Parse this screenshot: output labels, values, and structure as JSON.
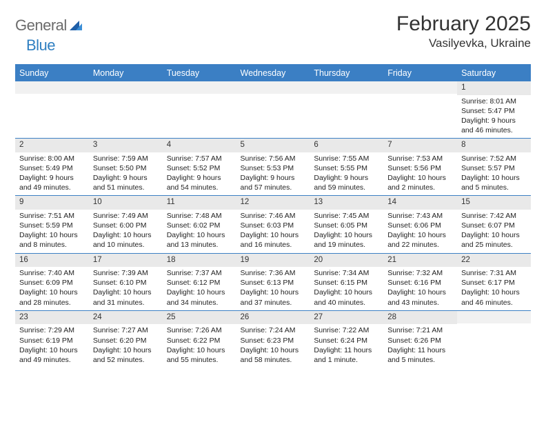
{
  "brand": {
    "word1": "General",
    "word2": "Blue"
  },
  "title": {
    "month": "February 2025",
    "location": "Vasilyevka, Ukraine"
  },
  "colors": {
    "header_bg": "#3b7fc4",
    "header_text": "#ffffff",
    "daynum_bg": "#e9e9e9",
    "rule": "#3b7fc4",
    "logo_gray": "#6b6b6b",
    "logo_blue": "#2f7fc1"
  },
  "weekdays": [
    "Sunday",
    "Monday",
    "Tuesday",
    "Wednesday",
    "Thursday",
    "Friday",
    "Saturday"
  ],
  "weeks": [
    [
      {
        "n": "",
        "sunrise": "",
        "sunset": "",
        "daylight": ""
      },
      {
        "n": "",
        "sunrise": "",
        "sunset": "",
        "daylight": ""
      },
      {
        "n": "",
        "sunrise": "",
        "sunset": "",
        "daylight": ""
      },
      {
        "n": "",
        "sunrise": "",
        "sunset": "",
        "daylight": ""
      },
      {
        "n": "",
        "sunrise": "",
        "sunset": "",
        "daylight": ""
      },
      {
        "n": "",
        "sunrise": "",
        "sunset": "",
        "daylight": ""
      },
      {
        "n": "1",
        "sunrise": "Sunrise: 8:01 AM",
        "sunset": "Sunset: 5:47 PM",
        "daylight": "Daylight: 9 hours and 46 minutes."
      }
    ],
    [
      {
        "n": "2",
        "sunrise": "Sunrise: 8:00 AM",
        "sunset": "Sunset: 5:49 PM",
        "daylight": "Daylight: 9 hours and 49 minutes."
      },
      {
        "n": "3",
        "sunrise": "Sunrise: 7:59 AM",
        "sunset": "Sunset: 5:50 PM",
        "daylight": "Daylight: 9 hours and 51 minutes."
      },
      {
        "n": "4",
        "sunrise": "Sunrise: 7:57 AM",
        "sunset": "Sunset: 5:52 PM",
        "daylight": "Daylight: 9 hours and 54 minutes."
      },
      {
        "n": "5",
        "sunrise": "Sunrise: 7:56 AM",
        "sunset": "Sunset: 5:53 PM",
        "daylight": "Daylight: 9 hours and 57 minutes."
      },
      {
        "n": "6",
        "sunrise": "Sunrise: 7:55 AM",
        "sunset": "Sunset: 5:55 PM",
        "daylight": "Daylight: 9 hours and 59 minutes."
      },
      {
        "n": "7",
        "sunrise": "Sunrise: 7:53 AM",
        "sunset": "Sunset: 5:56 PM",
        "daylight": "Daylight: 10 hours and 2 minutes."
      },
      {
        "n": "8",
        "sunrise": "Sunrise: 7:52 AM",
        "sunset": "Sunset: 5:57 PM",
        "daylight": "Daylight: 10 hours and 5 minutes."
      }
    ],
    [
      {
        "n": "9",
        "sunrise": "Sunrise: 7:51 AM",
        "sunset": "Sunset: 5:59 PM",
        "daylight": "Daylight: 10 hours and 8 minutes."
      },
      {
        "n": "10",
        "sunrise": "Sunrise: 7:49 AM",
        "sunset": "Sunset: 6:00 PM",
        "daylight": "Daylight: 10 hours and 10 minutes."
      },
      {
        "n": "11",
        "sunrise": "Sunrise: 7:48 AM",
        "sunset": "Sunset: 6:02 PM",
        "daylight": "Daylight: 10 hours and 13 minutes."
      },
      {
        "n": "12",
        "sunrise": "Sunrise: 7:46 AM",
        "sunset": "Sunset: 6:03 PM",
        "daylight": "Daylight: 10 hours and 16 minutes."
      },
      {
        "n": "13",
        "sunrise": "Sunrise: 7:45 AM",
        "sunset": "Sunset: 6:05 PM",
        "daylight": "Daylight: 10 hours and 19 minutes."
      },
      {
        "n": "14",
        "sunrise": "Sunrise: 7:43 AM",
        "sunset": "Sunset: 6:06 PM",
        "daylight": "Daylight: 10 hours and 22 minutes."
      },
      {
        "n": "15",
        "sunrise": "Sunrise: 7:42 AM",
        "sunset": "Sunset: 6:07 PM",
        "daylight": "Daylight: 10 hours and 25 minutes."
      }
    ],
    [
      {
        "n": "16",
        "sunrise": "Sunrise: 7:40 AM",
        "sunset": "Sunset: 6:09 PM",
        "daylight": "Daylight: 10 hours and 28 minutes."
      },
      {
        "n": "17",
        "sunrise": "Sunrise: 7:39 AM",
        "sunset": "Sunset: 6:10 PM",
        "daylight": "Daylight: 10 hours and 31 minutes."
      },
      {
        "n": "18",
        "sunrise": "Sunrise: 7:37 AM",
        "sunset": "Sunset: 6:12 PM",
        "daylight": "Daylight: 10 hours and 34 minutes."
      },
      {
        "n": "19",
        "sunrise": "Sunrise: 7:36 AM",
        "sunset": "Sunset: 6:13 PM",
        "daylight": "Daylight: 10 hours and 37 minutes."
      },
      {
        "n": "20",
        "sunrise": "Sunrise: 7:34 AM",
        "sunset": "Sunset: 6:15 PM",
        "daylight": "Daylight: 10 hours and 40 minutes."
      },
      {
        "n": "21",
        "sunrise": "Sunrise: 7:32 AM",
        "sunset": "Sunset: 6:16 PM",
        "daylight": "Daylight: 10 hours and 43 minutes."
      },
      {
        "n": "22",
        "sunrise": "Sunrise: 7:31 AM",
        "sunset": "Sunset: 6:17 PM",
        "daylight": "Daylight: 10 hours and 46 minutes."
      }
    ],
    [
      {
        "n": "23",
        "sunrise": "Sunrise: 7:29 AM",
        "sunset": "Sunset: 6:19 PM",
        "daylight": "Daylight: 10 hours and 49 minutes."
      },
      {
        "n": "24",
        "sunrise": "Sunrise: 7:27 AM",
        "sunset": "Sunset: 6:20 PM",
        "daylight": "Daylight: 10 hours and 52 minutes."
      },
      {
        "n": "25",
        "sunrise": "Sunrise: 7:26 AM",
        "sunset": "Sunset: 6:22 PM",
        "daylight": "Daylight: 10 hours and 55 minutes."
      },
      {
        "n": "26",
        "sunrise": "Sunrise: 7:24 AM",
        "sunset": "Sunset: 6:23 PM",
        "daylight": "Daylight: 10 hours and 58 minutes."
      },
      {
        "n": "27",
        "sunrise": "Sunrise: 7:22 AM",
        "sunset": "Sunset: 6:24 PM",
        "daylight": "Daylight: 11 hours and 1 minute."
      },
      {
        "n": "28",
        "sunrise": "Sunrise: 7:21 AM",
        "sunset": "Sunset: 6:26 PM",
        "daylight": "Daylight: 11 hours and 5 minutes."
      },
      {
        "n": "",
        "sunrise": "",
        "sunset": "",
        "daylight": ""
      }
    ]
  ]
}
